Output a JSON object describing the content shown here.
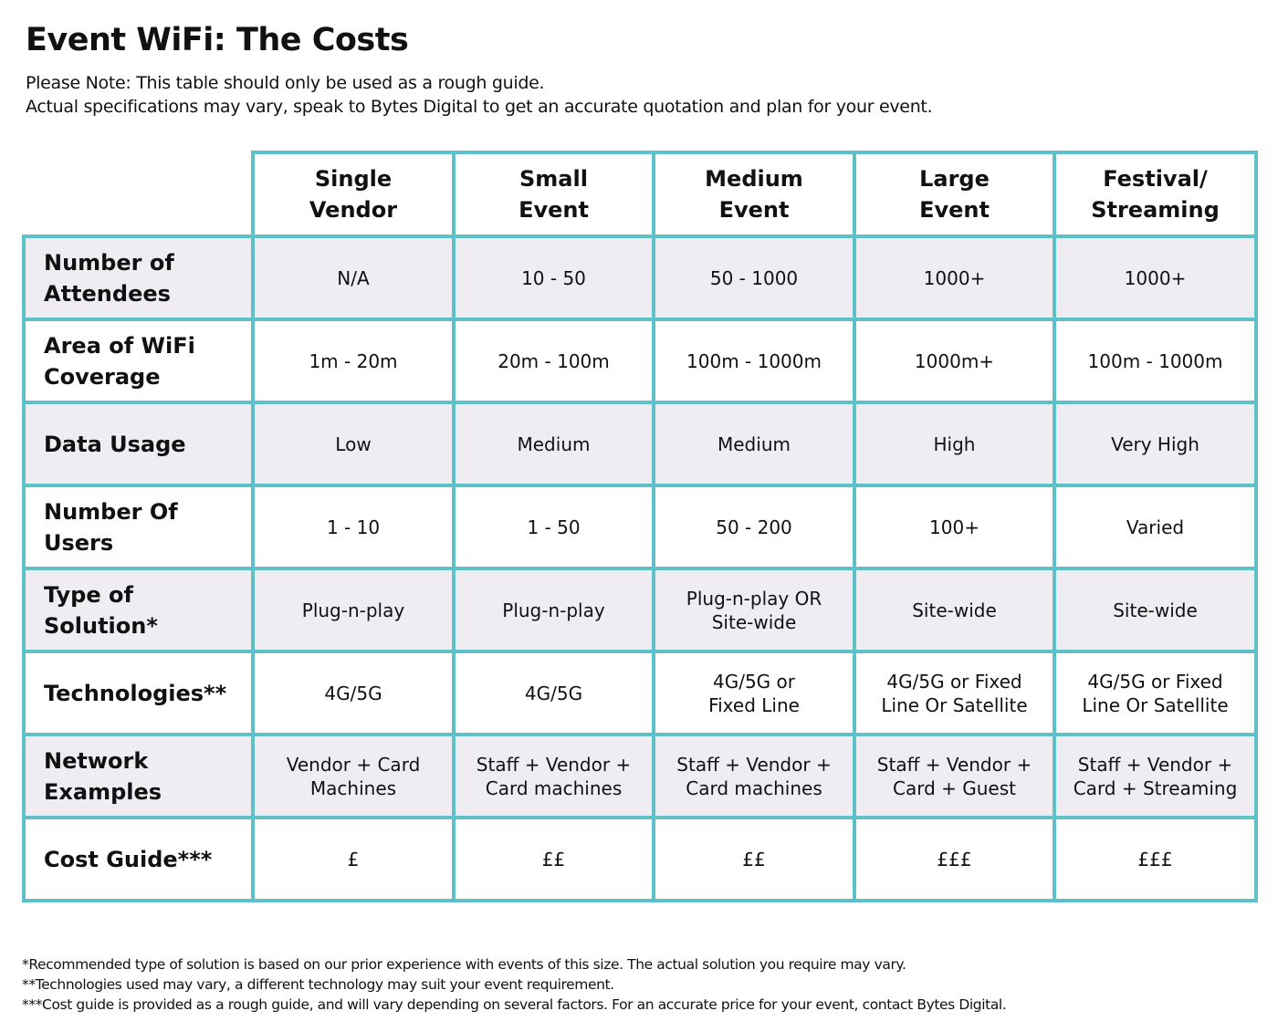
{
  "title": "Event WiFi: The Costs",
  "notes": [
    "Please Note: This table should only be used as a rough guide.",
    "Actual specifications may vary, speak to Bytes Digital to get an accurate quotation and plan for your event."
  ],
  "colors": {
    "border": "#5fc1c8",
    "shaded_row": "#efedf2"
  },
  "table": {
    "columns": [
      "Single\nVendor",
      "Small\nEvent",
      "Medium\nEvent",
      "Large\nEvent",
      "Festival/\nStreaming"
    ],
    "rows": [
      {
        "label": "Number of\nAttendees",
        "shaded": true,
        "cells": [
          "N/A",
          "10 - 50",
          "50 - 1000",
          "1000+",
          "1000+"
        ]
      },
      {
        "label": "Area of WiFi\nCoverage",
        "shaded": false,
        "cells": [
          "1m - 20m",
          "20m - 100m",
          "100m - 1000m",
          "1000m+",
          "100m - 1000m"
        ]
      },
      {
        "label": "Data Usage",
        "shaded": true,
        "cells": [
          "Low",
          "Medium",
          "Medium",
          "High",
          "Very High"
        ]
      },
      {
        "label": "Number Of Users",
        "shaded": false,
        "cells": [
          "1 - 10",
          "1 - 50",
          "50 - 200",
          "100+",
          "Varied"
        ]
      },
      {
        "label": "Type of\nSolution*",
        "shaded": true,
        "cells": [
          "Plug-n-play",
          "Plug-n-play",
          "Plug-n-play OR\nSite-wide",
          "Site-wide",
          "Site-wide"
        ]
      },
      {
        "label": "Technologies**",
        "shaded": false,
        "cells": [
          "4G/5G",
          "4G/5G",
          "4G/5G or\nFixed Line",
          "4G/5G or Fixed\nLine Or Satellite",
          "4G/5G or Fixed\nLine Or Satellite"
        ]
      },
      {
        "label": "Network\nExamples",
        "shaded": true,
        "cells": [
          "Vendor + Card\nMachines",
          "Staff + Vendor +\nCard machines",
          "Staff + Vendor +\nCard machines",
          "Staff + Vendor +\nCard + Guest",
          "Staff + Vendor +\nCard + Streaming"
        ]
      },
      {
        "label": "Cost Guide***",
        "shaded": false,
        "cells": [
          "£",
          "££",
          "££",
          "£££",
          "£££"
        ]
      }
    ]
  },
  "footnotes": [
    "*Recommended type of solution is based on our prior experience with events of this size. The actual solution you require may vary.",
    "**Technologies used may vary, a different technology may suit your event requirement.",
    "***Cost guide is provided as a rough guide, and will vary depending on several factors. For an accurate price for your event, contact Bytes Digital."
  ]
}
